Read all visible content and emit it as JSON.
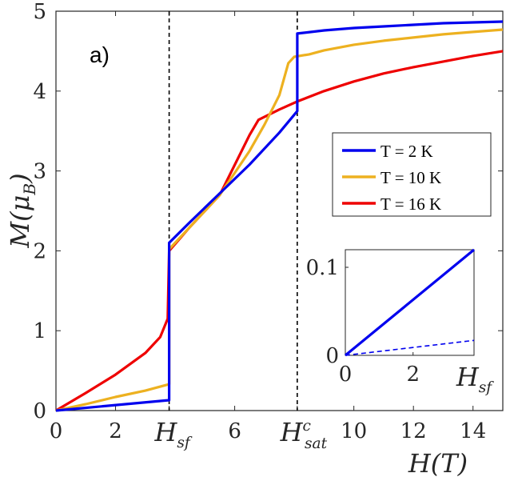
{
  "chart_data": [
    {
      "type": "line",
      "panel_label": "a)",
      "xlabel": "H(T)",
      "ylabel": "M(μB)",
      "xlim": [
        0,
        15
      ],
      "ylim": [
        0,
        5
      ],
      "xticks": [
        0,
        2,
        6,
        10,
        12,
        14
      ],
      "yticks": [
        0,
        1,
        2,
        3,
        4,
        5
      ],
      "special_xticks": [
        {
          "value": 3.8,
          "label": "Hsf"
        },
        {
          "value": 8.1,
          "label": "Hcsat"
        }
      ],
      "vlines": [
        3.8,
        8.1
      ],
      "legend": {
        "position": "right-middle"
      },
      "series": [
        {
          "name": "T = 2 K",
          "color": "#0000ee",
          "x": [
            0,
            3.8,
            3.8,
            4.5,
            5.5,
            6.5,
            7.5,
            8.1,
            8.1,
            9,
            10,
            11,
            12,
            13,
            14,
            15
          ],
          "y": [
            0,
            0.13,
            2.1,
            2.36,
            2.72,
            3.08,
            3.48,
            3.75,
            4.72,
            4.76,
            4.79,
            4.81,
            4.83,
            4.85,
            4.86,
            4.87
          ]
        },
        {
          "name": "T = 10 K",
          "color": "#edb120",
          "x": [
            0,
            1,
            2,
            3,
            3.8,
            3.8,
            4.5,
            5.5,
            6.5,
            7,
            7.5,
            7.8,
            8,
            8.5,
            9,
            10,
            11,
            12,
            13,
            14,
            15
          ],
          "y": [
            0,
            0.08,
            0.17,
            0.25,
            0.33,
            2.02,
            2.3,
            2.7,
            3.25,
            3.58,
            3.95,
            4.35,
            4.43,
            4.46,
            4.51,
            4.58,
            4.63,
            4.67,
            4.71,
            4.74,
            4.77
          ]
        },
        {
          "name": "T = 16 K",
          "color": "#ee0000",
          "x": [
            0,
            1,
            2,
            3,
            3.5,
            3.75,
            3.8,
            4.5,
            5.5,
            6.5,
            6.8,
            7.5,
            8.1,
            9,
            10,
            11,
            12,
            13,
            14,
            15
          ],
          "y": [
            0,
            0.22,
            0.45,
            0.72,
            0.92,
            1.15,
            2.0,
            2.3,
            2.7,
            3.45,
            3.64,
            3.77,
            3.87,
            4.0,
            4.12,
            4.22,
            4.3,
            4.37,
            4.44,
            4.5
          ]
        }
      ]
    },
    {
      "type": "line",
      "role": "inset",
      "xlim": [
        0,
        3.8
      ],
      "ylim": [
        0,
        0.12
      ],
      "xticks": [
        0,
        2
      ],
      "xtick_end_label": "Hsf",
      "yticks": [
        0,
        0.1
      ],
      "ytick_labels": [
        "0",
        "0.1"
      ],
      "series": [
        {
          "name": "solid",
          "color": "#0000ee",
          "style": "solid",
          "x": [
            0,
            3.8
          ],
          "y": [
            0,
            0.12
          ]
        },
        {
          "name": "dashed",
          "color": "#0000ee",
          "style": "dashed",
          "x": [
            0,
            3.8
          ],
          "y": [
            0,
            0.017
          ]
        }
      ]
    }
  ]
}
